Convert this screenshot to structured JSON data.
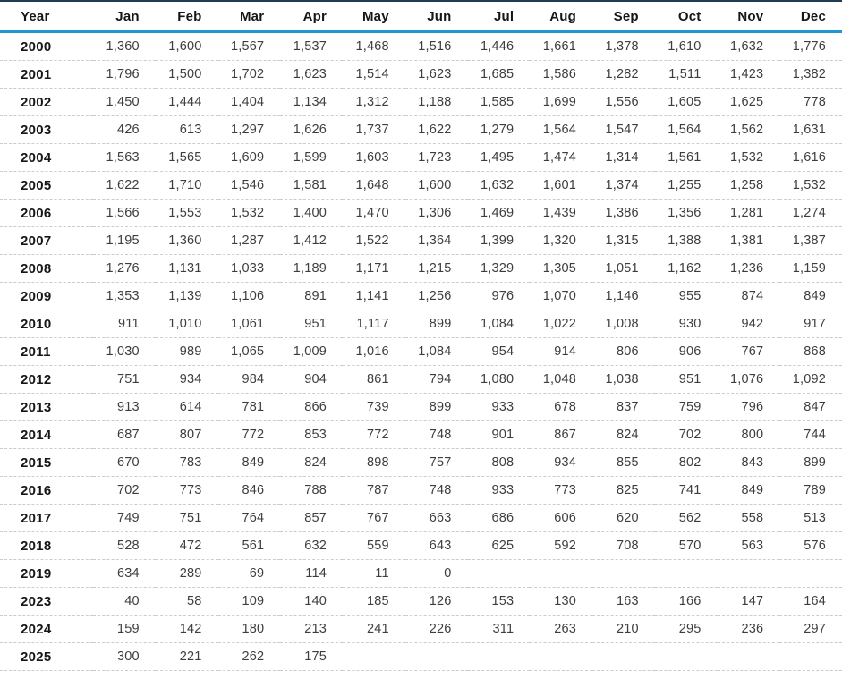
{
  "colors": {
    "top_rule": "#1d3d52",
    "header_underline": "#2097cf",
    "row_divider": "#cccccc",
    "header_text": "#161616",
    "value_text": "#3d3d3d"
  },
  "chart_data": {
    "type": "table",
    "title": "",
    "columns": [
      "Year",
      "Jan",
      "Feb",
      "Mar",
      "Apr",
      "May",
      "Jun",
      "Jul",
      "Aug",
      "Sep",
      "Oct",
      "Nov",
      "Dec"
    ],
    "rows": [
      {
        "year": "2000",
        "values": [
          1360,
          1600,
          1567,
          1537,
          1468,
          1516,
          1446,
          1661,
          1378,
          1610,
          1632,
          1776
        ]
      },
      {
        "year": "2001",
        "values": [
          1796,
          1500,
          1702,
          1623,
          1514,
          1623,
          1685,
          1586,
          1282,
          1511,
          1423,
          1382
        ]
      },
      {
        "year": "2002",
        "values": [
          1450,
          1444,
          1404,
          1134,
          1312,
          1188,
          1585,
          1699,
          1556,
          1605,
          1625,
          778
        ]
      },
      {
        "year": "2003",
        "values": [
          426,
          613,
          1297,
          1626,
          1737,
          1622,
          1279,
          1564,
          1547,
          1564,
          1562,
          1631
        ]
      },
      {
        "year": "2004",
        "values": [
          1563,
          1565,
          1609,
          1599,
          1603,
          1723,
          1495,
          1474,
          1314,
          1561,
          1532,
          1616
        ]
      },
      {
        "year": "2005",
        "values": [
          1622,
          1710,
          1546,
          1581,
          1648,
          1600,
          1632,
          1601,
          1374,
          1255,
          1258,
          1532
        ]
      },
      {
        "year": "2006",
        "values": [
          1566,
          1553,
          1532,
          1400,
          1470,
          1306,
          1469,
          1439,
          1386,
          1356,
          1281,
          1274
        ]
      },
      {
        "year": "2007",
        "values": [
          1195,
          1360,
          1287,
          1412,
          1522,
          1364,
          1399,
          1320,
          1315,
          1388,
          1381,
          1387
        ]
      },
      {
        "year": "2008",
        "values": [
          1276,
          1131,
          1033,
          1189,
          1171,
          1215,
          1329,
          1305,
          1051,
          1162,
          1236,
          1159
        ]
      },
      {
        "year": "2009",
        "values": [
          1353,
          1139,
          1106,
          891,
          1141,
          1256,
          976,
          1070,
          1146,
          955,
          874,
          849
        ]
      },
      {
        "year": "2010",
        "values": [
          911,
          1010,
          1061,
          951,
          1117,
          899,
          1084,
          1022,
          1008,
          930,
          942,
          917
        ]
      },
      {
        "year": "2011",
        "values": [
          1030,
          989,
          1065,
          1009,
          1016,
          1084,
          954,
          914,
          806,
          906,
          767,
          868
        ]
      },
      {
        "year": "2012",
        "values": [
          751,
          934,
          984,
          904,
          861,
          794,
          1080,
          1048,
          1038,
          951,
          1076,
          1092
        ]
      },
      {
        "year": "2013",
        "values": [
          913,
          614,
          781,
          866,
          739,
          899,
          933,
          678,
          837,
          759,
          796,
          847
        ]
      },
      {
        "year": "2014",
        "values": [
          687,
          807,
          772,
          853,
          772,
          748,
          901,
          867,
          824,
          702,
          800,
          744
        ]
      },
      {
        "year": "2015",
        "values": [
          670,
          783,
          849,
          824,
          898,
          757,
          808,
          934,
          855,
          802,
          843,
          899
        ]
      },
      {
        "year": "2016",
        "values": [
          702,
          773,
          846,
          788,
          787,
          748,
          933,
          773,
          825,
          741,
          849,
          789
        ]
      },
      {
        "year": "2017",
        "values": [
          749,
          751,
          764,
          857,
          767,
          663,
          686,
          606,
          620,
          562,
          558,
          513
        ]
      },
      {
        "year": "2018",
        "values": [
          528,
          472,
          561,
          632,
          559,
          643,
          625,
          592,
          708,
          570,
          563,
          576
        ]
      },
      {
        "year": "2019",
        "values": [
          634,
          289,
          69,
          114,
          11,
          0,
          null,
          null,
          null,
          null,
          null,
          null
        ]
      },
      {
        "year": "2023",
        "values": [
          40,
          58,
          109,
          140,
          185,
          126,
          153,
          130,
          163,
          166,
          147,
          164
        ]
      },
      {
        "year": "2024",
        "values": [
          159,
          142,
          180,
          213,
          241,
          226,
          311,
          263,
          210,
          295,
          236,
          297
        ]
      },
      {
        "year": "2025",
        "values": [
          300,
          221,
          262,
          175,
          null,
          null,
          null,
          null,
          null,
          null,
          null,
          null
        ]
      }
    ]
  }
}
